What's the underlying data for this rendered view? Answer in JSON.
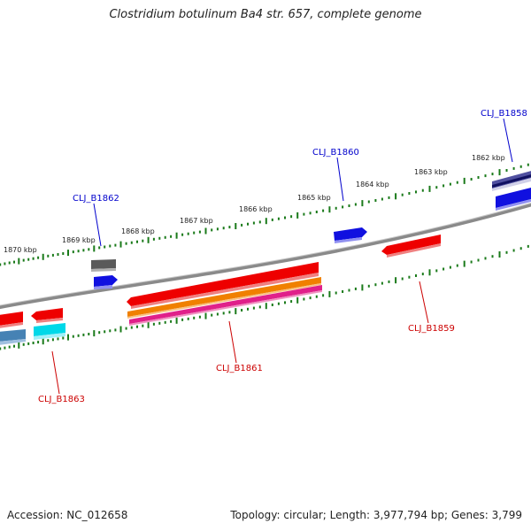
{
  "title": "Clostridium botulinum Ba4 str. 657, complete genome",
  "footer": {
    "accession": "Accession: NC_012658",
    "info": "Topology: circular; Length: 3,977,794 bp; Genes: 3,799"
  },
  "scale_labels": [
    "1870 kbp",
    "1869 kbp",
    "1868 kbp",
    "1867 kbp",
    "1866 kbp",
    "1865 kbp",
    "1864 kbp",
    "1863 kbp",
    "1862 kbp"
  ],
  "gene_labels": {
    "forward": [
      "CLJ_B1862",
      "CLJ_B1860",
      "CLJ_B1858"
    ],
    "reverse": [
      "CLJ_B1863",
      "CLJ_B1861",
      "CLJ_B1859"
    ]
  },
  "colors": {
    "forward_label": "#0000cc",
    "reverse_label": "#cc0000",
    "tick": "#1a7a1a",
    "backbone": "#808080"
  }
}
